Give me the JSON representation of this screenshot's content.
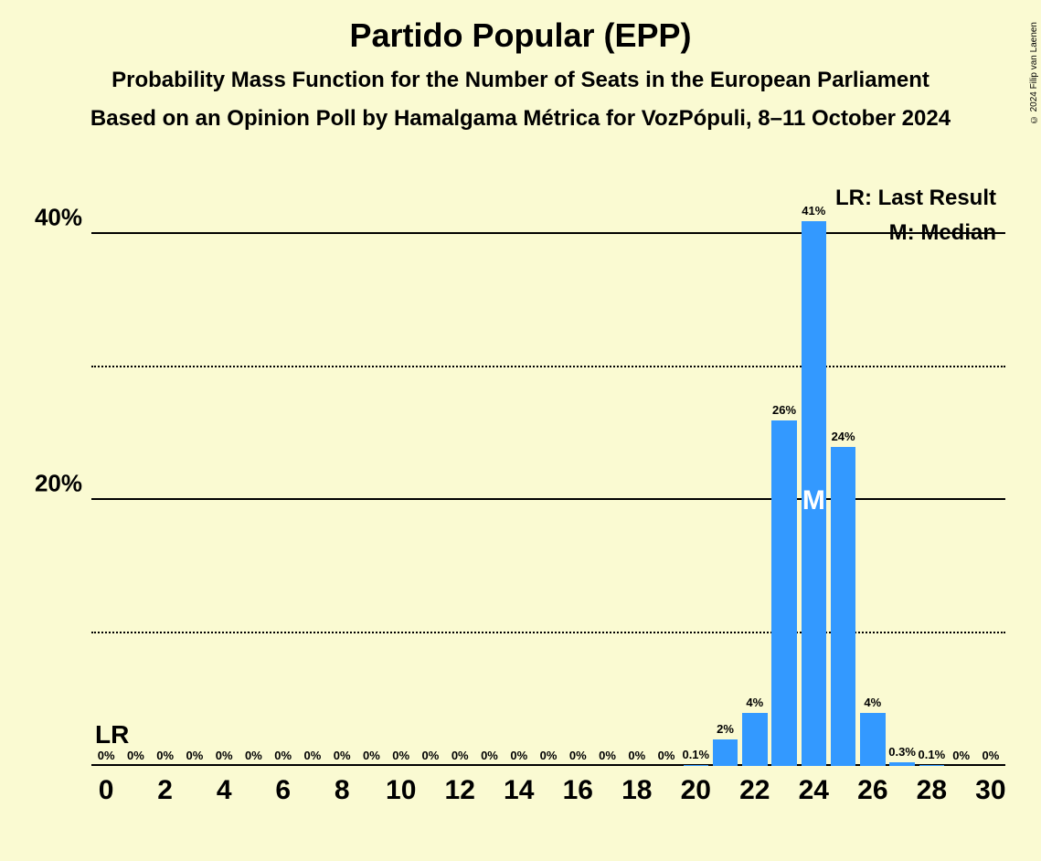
{
  "title": "Partido Popular (EPP)",
  "subtitle1": "Probability Mass Function for the Number of Seats in the European Parliament",
  "subtitle2": "Based on an Opinion Poll by Hamalgama Métrica for VozPópuli, 8–11 October 2024",
  "copyright": "© 2024 Filip van Laenen",
  "legend": {
    "lr": "LR: Last Result",
    "m": "M: Median"
  },
  "chart": {
    "type": "bar",
    "background_color": "#fafad2",
    "bar_color": "#3399ff",
    "grid_solid_color": "#000000",
    "grid_dotted_color": "#000000",
    "text_color": "#000000",
    "median_text_color": "#ffffff",
    "ymax_pct": 44,
    "yticks_major": [
      20,
      40
    ],
    "yticks_minor": [
      10,
      30
    ],
    "ytick_labels": {
      "20": "20%",
      "40": "40%"
    },
    "x_min": 0,
    "x_max": 30,
    "xticks": [
      0,
      2,
      4,
      6,
      8,
      10,
      12,
      14,
      16,
      18,
      20,
      22,
      24,
      26,
      28,
      30
    ],
    "bar_width_ratio": 0.85,
    "bars": [
      {
        "x": 0,
        "pct": 0,
        "label": "0%"
      },
      {
        "x": 1,
        "pct": 0,
        "label": "0%"
      },
      {
        "x": 2,
        "pct": 0,
        "label": "0%"
      },
      {
        "x": 3,
        "pct": 0,
        "label": "0%"
      },
      {
        "x": 4,
        "pct": 0,
        "label": "0%"
      },
      {
        "x": 5,
        "pct": 0,
        "label": "0%"
      },
      {
        "x": 6,
        "pct": 0,
        "label": "0%"
      },
      {
        "x": 7,
        "pct": 0,
        "label": "0%"
      },
      {
        "x": 8,
        "pct": 0,
        "label": "0%"
      },
      {
        "x": 9,
        "pct": 0,
        "label": "0%"
      },
      {
        "x": 10,
        "pct": 0,
        "label": "0%"
      },
      {
        "x": 11,
        "pct": 0,
        "label": "0%"
      },
      {
        "x": 12,
        "pct": 0,
        "label": "0%"
      },
      {
        "x": 13,
        "pct": 0,
        "label": "0%"
      },
      {
        "x": 14,
        "pct": 0,
        "label": "0%"
      },
      {
        "x": 15,
        "pct": 0,
        "label": "0%"
      },
      {
        "x": 16,
        "pct": 0,
        "label": "0%"
      },
      {
        "x": 17,
        "pct": 0,
        "label": "0%"
      },
      {
        "x": 18,
        "pct": 0,
        "label": "0%"
      },
      {
        "x": 19,
        "pct": 0,
        "label": "0%"
      },
      {
        "x": 20,
        "pct": 0.1,
        "label": "0.1%"
      },
      {
        "x": 21,
        "pct": 2,
        "label": "2%"
      },
      {
        "x": 22,
        "pct": 4,
        "label": "4%"
      },
      {
        "x": 23,
        "pct": 26,
        "label": "26%"
      },
      {
        "x": 24,
        "pct": 41,
        "label": "41%"
      },
      {
        "x": 25,
        "pct": 24,
        "label": "24%"
      },
      {
        "x": 26,
        "pct": 4,
        "label": "4%"
      },
      {
        "x": 27,
        "pct": 0.3,
        "label": "0.3%"
      },
      {
        "x": 28,
        "pct": 0.1,
        "label": "0.1%"
      },
      {
        "x": 29,
        "pct": 0,
        "label": "0%"
      },
      {
        "x": 30,
        "pct": 0,
        "label": "0%"
      }
    ],
    "lr_position_x": 0,
    "lr_text": "LR",
    "median_x": 24,
    "median_text": "M",
    "title_fontsize": 36,
    "subtitle_fontsize": 24,
    "ytick_fontsize": 26,
    "xtick_fontsize": 30,
    "barlabel_fontsize": 13,
    "legend_fontsize": 24
  }
}
